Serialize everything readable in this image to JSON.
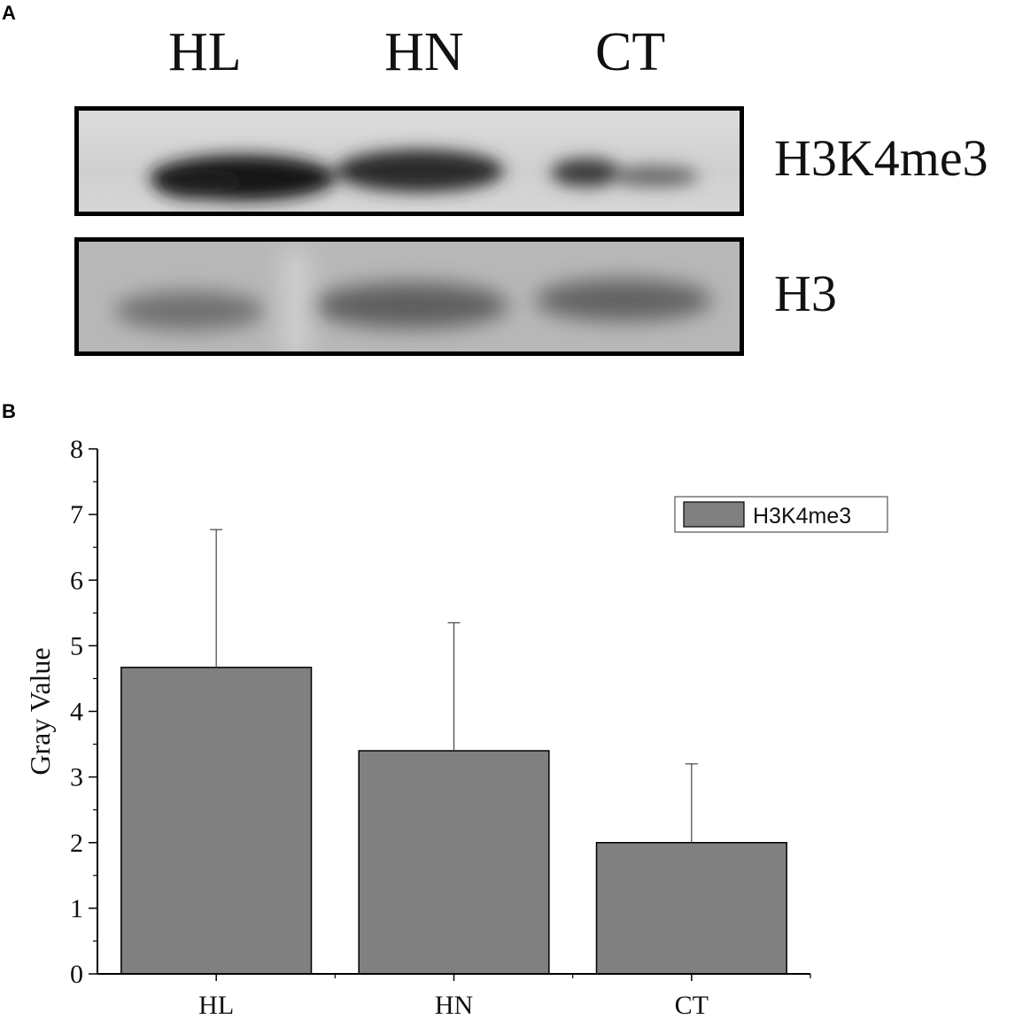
{
  "panel_a": {
    "letter": "A",
    "lanes": [
      "HL",
      "HN",
      "CT"
    ],
    "bands": [
      "H3K4me3",
      "H3"
    ]
  },
  "panel_b": {
    "letter": "B"
  },
  "chart_data": {
    "type": "bar",
    "categories": [
      "HL",
      "HN",
      "CT"
    ],
    "series": [
      {
        "name": "H3K4me3",
        "values": [
          4.67,
          3.4,
          2.0
        ],
        "error": [
          2.1,
          1.95,
          1.2
        ],
        "color": "#808080"
      }
    ],
    "xlabel": "",
    "ylabel": "Gray Value",
    "ylim": [
      0,
      8
    ],
    "yticks": [
      0,
      1,
      2,
      3,
      4,
      5,
      6,
      7,
      8
    ],
    "grid": false,
    "legend_position": "top-right"
  }
}
